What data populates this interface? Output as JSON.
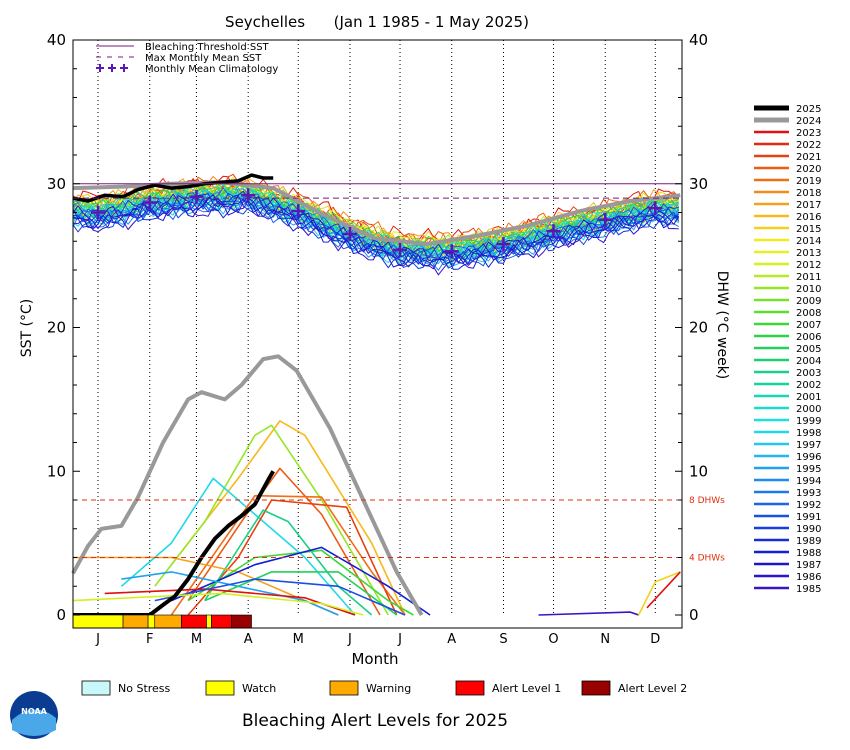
{
  "chart_data": {
    "type": "line",
    "title": "Seychelles      (Jan 1 1985 - 1 May 2025)",
    "xlabel": "Month",
    "ylabel_left": "SST (°C)",
    "ylabel_right": "DHW (°C week)",
    "months": [
      "J",
      "F",
      "M",
      "A",
      "M",
      "J",
      "J",
      "A",
      "S",
      "O",
      "N",
      "D"
    ],
    "ylim": [
      0,
      40
    ],
    "yticks": [
      0,
      10,
      20,
      30,
      40
    ],
    "bleaching_threshold_sst": 30.0,
    "max_monthly_mean_sst": 29.0,
    "dhw_reference_lines": [
      {
        "value": 8,
        "label": "8 DHWs"
      },
      {
        "value": 4,
        "label": "4 DHWs"
      }
    ],
    "legend_top": [
      {
        "label": "Bleaching Threshold SST",
        "style": "solid",
        "color": "#7a1a7a"
      },
      {
        "label": "Max Monthly Mean SST",
        "style": "dashed",
        "color": "#7a1a7a"
      },
      {
        "label": "Monthly Mean Climatology",
        "style": "plus",
        "color": "#5a17b8"
      }
    ],
    "climatology": [
      {
        "month": 1,
        "sst": 28.0
      },
      {
        "month": 2,
        "sst": 28.7
      },
      {
        "month": 3,
        "sst": 29.1
      },
      {
        "month": 4,
        "sst": 29.2
      },
      {
        "month": 5,
        "sst": 28.1
      },
      {
        "month": 6,
        "sst": 26.5
      },
      {
        "month": 7,
        "sst": 25.4
      },
      {
        "month": 8,
        "sst": 25.3
      },
      {
        "month": 9,
        "sst": 25.8
      },
      {
        "month": 10,
        "sst": 26.7
      },
      {
        "month": 11,
        "sst": 27.5
      },
      {
        "month": 12,
        "sst": 28.3
      }
    ],
    "years": [
      {
        "year": "2025",
        "color": "#000000"
      },
      {
        "year": "2024",
        "color": "#999999"
      },
      {
        "year": "2023",
        "color": "#e01010"
      },
      {
        "year": "2022",
        "color": "#e02818"
      },
      {
        "year": "2021",
        "color": "#e84010"
      },
      {
        "year": "2020",
        "color": "#ee5a12"
      },
      {
        "year": "2019",
        "color": "#f06e16"
      },
      {
        "year": "2018",
        "color": "#f28a1e"
      },
      {
        "year": "2017",
        "color": "#f5a020"
      },
      {
        "year": "2016",
        "color": "#f7b91c"
      },
      {
        "year": "2015",
        "color": "#f5d21a"
      },
      {
        "year": "2014",
        "color": "#f2ea1c"
      },
      {
        "year": "2013",
        "color": "#e8f01e"
      },
      {
        "year": "2012",
        "color": "#d4f020"
      },
      {
        "year": "2011",
        "color": "#b6ea22"
      },
      {
        "year": "2010",
        "color": "#96e626"
      },
      {
        "year": "2009",
        "color": "#78e22a"
      },
      {
        "year": "2008",
        "color": "#5ade30"
      },
      {
        "year": "2007",
        "color": "#3ed836"
      },
      {
        "year": "2006",
        "color": "#2ad246"
      },
      {
        "year": "2005",
        "color": "#22d05a"
      },
      {
        "year": "2004",
        "color": "#1cd070"
      },
      {
        "year": "2003",
        "color": "#18d088"
      },
      {
        "year": "2002",
        "color": "#16d4a0"
      },
      {
        "year": "2001",
        "color": "#16d8b8"
      },
      {
        "year": "2000",
        "color": "#18dccc"
      },
      {
        "year": "1999",
        "color": "#1ce0dc"
      },
      {
        "year": "1998",
        "color": "#20d8e8"
      },
      {
        "year": "1997",
        "color": "#22c8ee"
      },
      {
        "year": "1996",
        "color": "#22b6f0"
      },
      {
        "year": "1995",
        "color": "#20a2f0"
      },
      {
        "year": "1994",
        "color": "#1e8cee"
      },
      {
        "year": "1993",
        "color": "#1c78ec"
      },
      {
        "year": "1992",
        "color": "#1a64e8"
      },
      {
        "year": "1991",
        "color": "#1850e4"
      },
      {
        "year": "1990",
        "color": "#163ee0"
      },
      {
        "year": "1989",
        "color": "#142cdc"
      },
      {
        "year": "1988",
        "color": "#141ed6"
      },
      {
        "year": "1987",
        "color": "#1a16d0"
      },
      {
        "year": "1986",
        "color": "#2a14cc"
      },
      {
        "year": "1985",
        "color": "#3c14c8"
      }
    ],
    "sst_2025": [
      {
        "day": 1,
        "sst": 29.0
      },
      {
        "day": 10,
        "sst": 28.8
      },
      {
        "day": 20,
        "sst": 29.2
      },
      {
        "day": 31,
        "sst": 29.1
      },
      {
        "day": 40,
        "sst": 29.6
      },
      {
        "day": 50,
        "sst": 29.9
      },
      {
        "day": 60,
        "sst": 29.7
      },
      {
        "day": 70,
        "sst": 29.8
      },
      {
        "day": 80,
        "sst": 30.0
      },
      {
        "day": 90,
        "sst": 30.1
      },
      {
        "day": 100,
        "sst": 30.2
      },
      {
        "day": 108,
        "sst": 30.6
      },
      {
        "day": 115,
        "sst": 30.4
      },
      {
        "day": 121,
        "sst": 30.4
      }
    ],
    "sst_2024": [
      {
        "day": 1,
        "sst": 29.7
      },
      {
        "day": 31,
        "sst": 29.8
      },
      {
        "day": 60,
        "sst": 30.0
      },
      {
        "day": 90,
        "sst": 30.1
      },
      {
        "day": 121,
        "sst": 29.7
      },
      {
        "day": 152,
        "sst": 27.8
      },
      {
        "day": 182,
        "sst": 26.2
      },
      {
        "day": 213,
        "sst": 25.8
      },
      {
        "day": 244,
        "sst": 26.4
      },
      {
        "day": 274,
        "sst": 27.1
      },
      {
        "day": 305,
        "sst": 28.1
      },
      {
        "day": 335,
        "sst": 28.8
      },
      {
        "day": 365,
        "sst": 29.2
      }
    ],
    "dhw_2025": [
      {
        "day": 1,
        "dhw": 0
      },
      {
        "day": 47,
        "dhw": 0
      },
      {
        "day": 55,
        "dhw": 0.7
      },
      {
        "day": 62,
        "dhw": 1.3
      },
      {
        "day": 70,
        "dhw": 2.5
      },
      {
        "day": 78,
        "dhw": 4.0
      },
      {
        "day": 86,
        "dhw": 5.3
      },
      {
        "day": 94,
        "dhw": 6.2
      },
      {
        "day": 102,
        "dhw": 6.9
      },
      {
        "day": 110,
        "dhw": 7.7
      },
      {
        "day": 118,
        "dhw": 9.4
      },
      {
        "day": 121,
        "dhw": 10.0
      }
    ],
    "dhw_2024": [
      {
        "day": 1,
        "dhw": 2.9
      },
      {
        "day": 10,
        "dhw": 4.8
      },
      {
        "day": 18,
        "dhw": 6.0
      },
      {
        "day": 30,
        "dhw": 6.2
      },
      {
        "day": 40,
        "dhw": 8.2
      },
      {
        "day": 55,
        "dhw": 12.0
      },
      {
        "day": 70,
        "dhw": 15.0
      },
      {
        "day": 78,
        "dhw": 15.5
      },
      {
        "day": 92,
        "dhw": 15.0
      },
      {
        "day": 102,
        "dhw": 16.0
      },
      {
        "day": 115,
        "dhw": 17.8
      },
      {
        "day": 124,
        "dhw": 18.0
      },
      {
        "day": 135,
        "dhw": 17.0
      },
      {
        "day": 155,
        "dhw": 13.0
      },
      {
        "day": 175,
        "dhw": 8.0
      },
      {
        "day": 195,
        "dhw": 3.0
      },
      {
        "day": 210,
        "dhw": 0
      }
    ],
    "other_dhw": [
      {
        "year": "2016",
        "color": "#f7b91c",
        "points": [
          {
            "day": 60,
            "dhw": 3.5
          },
          {
            "day": 100,
            "dhw": 9.5
          },
          {
            "day": 125,
            "dhw": 13.5
          },
          {
            "day": 140,
            "dhw": 12.5
          },
          {
            "day": 180,
            "dhw": 5
          },
          {
            "day": 200,
            "dhw": 0
          }
        ]
      },
      {
        "year": "2010",
        "color": "#96e626",
        "points": [
          {
            "day": 50,
            "dhw": 2
          },
          {
            "day": 80,
            "dhw": 6.5
          },
          {
            "day": 110,
            "dhw": 12.5
          },
          {
            "day": 120,
            "dhw": 13.2
          },
          {
            "day": 150,
            "dhw": 8
          },
          {
            "day": 190,
            "dhw": 0
          }
        ]
      },
      {
        "year": "1998",
        "color": "#20d8e8",
        "points": [
          {
            "day": 30,
            "dhw": 2
          },
          {
            "day": 60,
            "dhw": 5
          },
          {
            "day": 85,
            "dhw": 9.5
          },
          {
            "day": 110,
            "dhw": 7
          },
          {
            "day": 140,
            "dhw": 4
          },
          {
            "day": 170,
            "dhw": 0
          }
        ]
      },
      {
        "year": "2020",
        "color": "#ee5a12",
        "points": [
          {
            "day": 70,
            "dhw": 1
          },
          {
            "day": 105,
            "dhw": 7
          },
          {
            "day": 125,
            "dhw": 10.2
          },
          {
            "day": 150,
            "dhw": 7
          },
          {
            "day": 185,
            "dhw": 0
          }
        ]
      },
      {
        "year": "2019",
        "color": "#f06e16",
        "points": [
          {
            "day": 60,
            "dhw": 0
          },
          {
            "day": 110,
            "dhw": 8.3
          },
          {
            "day": 150,
            "dhw": 8.2
          },
          {
            "day": 180,
            "dhw": 3
          },
          {
            "day": 200,
            "dhw": 0
          }
        ]
      },
      {
        "year": "2021",
        "color": "#e84010",
        "points": [
          {
            "day": 70,
            "dhw": 0
          },
          {
            "day": 100,
            "dhw": 4
          },
          {
            "day": 120,
            "dhw": 8
          },
          {
            "day": 165,
            "dhw": 7.5
          },
          {
            "day": 195,
            "dhw": 0
          }
        ]
      },
      {
        "year": "2003",
        "color": "#18d088",
        "points": [
          {
            "day": 80,
            "dhw": 1
          },
          {
            "day": 115,
            "dhw": 7.3
          },
          {
            "day": 130,
            "dhw": 6.5
          },
          {
            "day": 160,
            "dhw": 2
          },
          {
            "day": 180,
            "dhw": 0
          }
        ]
      },
      {
        "year": "2017",
        "color": "#f5a020",
        "points": [
          {
            "day": 1,
            "dhw": 4
          },
          {
            "day": 60,
            "dhw": 4
          },
          {
            "day": 100,
            "dhw": 3
          },
          {
            "day": 140,
            "dhw": 1
          },
          {
            "day": 160,
            "dhw": 0
          }
        ]
      },
      {
        "year": "2007",
        "color": "#3ed836",
        "points": [
          {
            "day": 70,
            "dhw": 1
          },
          {
            "day": 110,
            "dhw": 4
          },
          {
            "day": 150,
            "dhw": 4.5
          },
          {
            "day": 190,
            "dhw": 1
          },
          {
            "day": 205,
            "dhw": 0
          }
        ]
      },
      {
        "year": "1988",
        "color": "#141ed6",
        "points": [
          {
            "day": 60,
            "dhw": 1
          },
          {
            "day": 110,
            "dhw": 3.5
          },
          {
            "day": 150,
            "dhw": 4.7
          },
          {
            "day": 190,
            "dhw": 2
          },
          {
            "day": 215,
            "dhw": 0
          }
        ]
      },
      {
        "year": "1995",
        "color": "#20a2f0",
        "points": [
          {
            "day": 30,
            "dhw": 2.5
          },
          {
            "day": 60,
            "dhw": 3
          },
          {
            "day": 100,
            "dhw": 2
          },
          {
            "day": 140,
            "dhw": 1
          },
          {
            "day": 160,
            "dhw": 0
          }
        ]
      },
      {
        "year": "2005",
        "color": "#22d05a",
        "points": [
          {
            "day": 80,
            "dhw": 1
          },
          {
            "day": 120,
            "dhw": 3
          },
          {
            "day": 160,
            "dhw": 3
          },
          {
            "day": 195,
            "dhw": 0
          }
        ]
      },
      {
        "year": "2023",
        "color": "#e01010",
        "points": [
          {
            "day": 20,
            "dhw": 1.5
          },
          {
            "day": 80,
            "dhw": 1.8
          },
          {
            "day": 140,
            "dhw": 1.2
          },
          {
            "day": 170,
            "dhw": 0
          }
        ]
      },
      {
        "year": "1991",
        "color": "#1850e4",
        "points": [
          {
            "day": 50,
            "dhw": 1
          },
          {
            "day": 110,
            "dhw": 2.5
          },
          {
            "day": 160,
            "dhw": 2
          },
          {
            "day": 200,
            "dhw": 0
          }
        ]
      },
      {
        "year": "2012",
        "color": "#d4f020",
        "points": [
          {
            "day": 1,
            "dhw": 1
          },
          {
            "day": 90,
            "dhw": 1.5
          },
          {
            "day": 150,
            "dhw": 0.8
          },
          {
            "day": 175,
            "dhw": 0
          }
        ]
      },
      {
        "year": "1985",
        "color": "#3c14c8",
        "points": [
          {
            "day": 280,
            "dhw": 0
          },
          {
            "day": 335,
            "dhw": 0.2
          },
          {
            "day": 340,
            "dhw": 0
          }
        ]
      },
      {
        "year": "2024",
        "color": "#f5d21a",
        "points": [
          {
            "day": 340,
            "dhw": 0
          },
          {
            "day": 350,
            "dhw": 2.3
          },
          {
            "day": 365,
            "dhw": 3
          }
        ]
      },
      {
        "year": "2023",
        "color": "#e01010",
        "points": [
          {
            "day": 345,
            "dhw": 0.5
          },
          {
            "day": 365,
            "dhw": 3
          }
        ]
      }
    ],
    "alert_bar_2025": [
      {
        "start_day": 1,
        "end_day": 31,
        "level": "Watch"
      },
      {
        "start_day": 31,
        "end_day": 46,
        "level": "Warning"
      },
      {
        "start_day": 46,
        "end_day": 50,
        "level": "Watch"
      },
      {
        "start_day": 50,
        "end_day": 66,
        "level": "Warning"
      },
      {
        "start_day": 66,
        "end_day": 81,
        "level": "Alert Level 1"
      },
      {
        "start_day": 81,
        "end_day": 84,
        "level": "Watch"
      },
      {
        "start_day": 84,
        "end_day": 96,
        "level": "Alert Level 1"
      },
      {
        "start_day": 96,
        "end_day": 108,
        "level": "Alert Level 2"
      }
    ],
    "alert_levels": [
      {
        "label": "No Stress",
        "color": "#c8f8f8"
      },
      {
        "label": "Watch",
        "color": "#ffff00"
      },
      {
        "label": "Warning",
        "color": "#ffaa00"
      },
      {
        "label": "Alert Level 1",
        "color": "#ff0000"
      },
      {
        "label": "Alert Level 2",
        "color": "#990000"
      }
    ],
    "footer_title": "Bleaching Alert Levels for 2025",
    "logo_text": "NOAA"
  }
}
